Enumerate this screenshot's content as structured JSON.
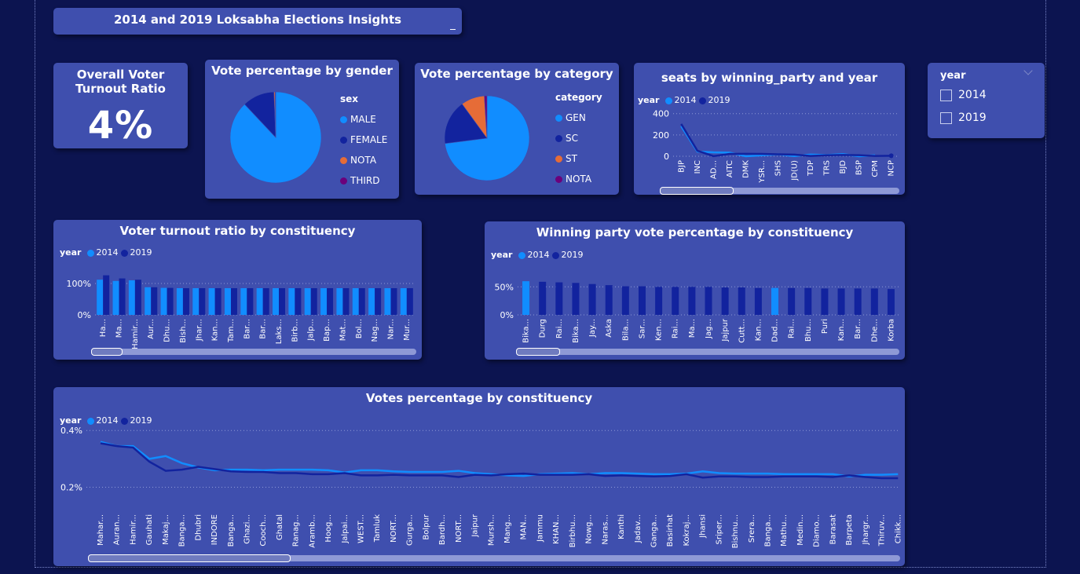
{
  "header": {
    "title": "2014 and 2019 Loksabha Elections Insights"
  },
  "colors": {
    "y2014": "#118dff",
    "y2019": "#12239e",
    "nota": "#e66c37",
    "third": "#6b007b",
    "card_bg": "#3f4fae"
  },
  "kpi": {
    "title": "Overall Voter Turnout Ratio",
    "value": "4%"
  },
  "slicer": {
    "title": "year",
    "options": [
      "2014",
      "2019"
    ]
  },
  "chart_data": [
    {
      "type": "pie",
      "title": "Vote percentage by gender",
      "legend_title": "sex",
      "labels": [
        "MALE",
        "FEMALE",
        "NOTA",
        "THIRD"
      ],
      "values": [
        88.0,
        11.4,
        0.4,
        0.2
      ],
      "colors": [
        "#118dff",
        "#12239e",
        "#e66c37",
        "#6b007b"
      ]
    },
    {
      "type": "pie",
      "title": "Vote percentage by category",
      "legend_title": "category",
      "labels": [
        "GEN",
        "SC",
        "ST",
        "NOTA"
      ],
      "values": [
        73,
        17,
        9,
        1
      ],
      "colors": [
        "#118dff",
        "#12239e",
        "#e66c37",
        "#6b007b"
      ]
    },
    {
      "type": "line",
      "title": "seats by winning_party and year",
      "legend_title": "year",
      "categories": [
        "BJP",
        "INC",
        "AD...",
        "AITC",
        "DMK",
        "YSR...",
        "SHS",
        "JD(U)",
        "TDP",
        "TRS",
        "BJD",
        "BSP",
        "CPM",
        "NCP"
      ],
      "series": [
        {
          "name": "2014",
          "values": [
            282,
            44,
            37,
            34,
            0,
            9,
            18,
            2,
            16,
            11,
            20,
            0,
            9,
            null
          ]
        },
        {
          "name": "2019",
          "values": [
            303,
            52,
            1,
            22,
            23,
            22,
            18,
            16,
            3,
            9,
            12,
            10,
            3,
            5
          ]
        }
      ],
      "yticks": [
        "400",
        "200",
        "0"
      ],
      "ylim": [
        0,
        420
      ]
    },
    {
      "type": "bar",
      "title": "Voter turnout ratio by constituency",
      "legend_title": "year",
      "categories": [
        "Ha...",
        "Ma...",
        "Hamir...",
        "Aur...",
        "Dhu...",
        "Bish...",
        "Jhar...",
        "Kan...",
        "Tam...",
        "Bar...",
        "Bar...",
        "Laks...",
        "Birb...",
        "Jalp...",
        "Bap...",
        "Mat...",
        "Bol...",
        "Nag...",
        "Nar...",
        "Mur..."
      ],
      "series": [
        {
          "name": "2014",
          "values": [
            1.12,
            1.08,
            1.1,
            0.88,
            0.86,
            0.85,
            0.85,
            0.85,
            0.85,
            0.85,
            0.85,
            0.85,
            0.85,
            0.85,
            0.85,
            0.85,
            0.85,
            0.85,
            0.85,
            0.85
          ]
        },
        {
          "name": "2019",
          "values": [
            1.26,
            1.16,
            1.12,
            0.88,
            0.86,
            0.85,
            0.85,
            0.85,
            0.85,
            0.85,
            0.85,
            0.85,
            0.85,
            0.85,
            0.85,
            0.85,
            0.85,
            0.85,
            0.85,
            0.85
          ]
        }
      ],
      "yticks": [
        "100%",
        "0%"
      ],
      "ylim": [
        0,
        1.4
      ]
    },
    {
      "type": "bar",
      "title": "Winning party vote percentage by constituency",
      "legend_title": "year",
      "categories": [
        "Bika...",
        "Durg",
        "Rai...",
        "Bika...",
        "Jay...",
        "Aska",
        "Bila...",
        "Sar...",
        "Ken...",
        "Rai...",
        "Ma...",
        "Jag...",
        "Jajpur",
        "Cutt...",
        "Kan...",
        "Dad...",
        "Rai...",
        "Bhu...",
        "Puri",
        "Kan...",
        "Bar...",
        "Dhe...",
        "Korba"
      ],
      "series": [
        {
          "name": "2014",
          "values": [
            0.6,
            null,
            null,
            null,
            null,
            null,
            null,
            null,
            null,
            null,
            null,
            null,
            null,
            null,
            null,
            0.48,
            null,
            null,
            null,
            null,
            null,
            null,
            null
          ]
        },
        {
          "name": "2019",
          "values": [
            null,
            0.59,
            0.58,
            0.57,
            0.55,
            0.53,
            0.51,
            0.51,
            0.5,
            0.5,
            0.5,
            0.5,
            0.49,
            0.49,
            0.48,
            null,
            0.48,
            0.48,
            0.47,
            0.47,
            0.47,
            0.47,
            0.46
          ]
        }
      ],
      "yticks": [
        "50%",
        "0%"
      ],
      "ylim": [
        0,
        0.7
      ]
    },
    {
      "type": "line",
      "title": "Votes percentage by constituency",
      "legend_title": "year",
      "categories": [
        "Mahar...",
        "Auran...",
        "Hamir...",
        "Gauhati",
        "Makaj...",
        "Banga...",
        "Dhubri",
        "INDORE",
        "Banga...",
        "Ghazi...",
        "Cooch...",
        "Ghatal",
        "Ranag...",
        "Aramb...",
        "Hoog...",
        "Jalpai...",
        "WEST...",
        "Tamluk",
        "NORT...",
        "Gurga...",
        "Bolpur",
        "Bardh...",
        "NORT...",
        "Jaipur",
        "Mursh...",
        "Mang...",
        "MAN...",
        "Jammu",
        "KHAN...",
        "Birbhu...",
        "Nowg...",
        "Naras...",
        "Kanthi",
        "Jadav...",
        "Ganga...",
        "Basirhat",
        "Kokraj...",
        "Jhansi",
        "Sriper...",
        "Bishnu...",
        "Srera...",
        "Banga...",
        "Mathu...",
        "Medin...",
        "Diamo...",
        "Barasat",
        "Barpeta",
        "Jhargr...",
        "Thiruv...",
        "Chikk..."
      ],
      "series": [
        {
          "name": "2014",
          "values": [
            0.36,
            0.345,
            0.345,
            0.3,
            0.31,
            0.285,
            0.27,
            0.26,
            0.262,
            0.262,
            0.26,
            0.262,
            0.262,
            0.262,
            0.26,
            0.252,
            0.26,
            0.26,
            0.256,
            0.254,
            0.254,
            0.254,
            0.258,
            0.25,
            0.246,
            0.242,
            0.24,
            0.246,
            0.248,
            0.25,
            0.246,
            0.25,
            0.25,
            0.248,
            0.246,
            0.246,
            0.248,
            0.256,
            0.25,
            0.248,
            0.248,
            0.248,
            0.246,
            0.246,
            0.246,
            0.246,
            0.238,
            0.244,
            0.244,
            0.246
          ]
        },
        {
          "name": "2019",
          "values": [
            0.355,
            0.345,
            0.34,
            0.29,
            0.258,
            0.262,
            0.272,
            0.264,
            0.256,
            0.254,
            0.254,
            0.25,
            0.25,
            0.246,
            0.246,
            0.25,
            0.242,
            0.242,
            0.244,
            0.242,
            0.242,
            0.242,
            0.236,
            0.244,
            0.242,
            0.246,
            0.248,
            0.244,
            0.244,
            0.244,
            0.246,
            0.24,
            0.242,
            0.24,
            0.238,
            0.24,
            0.246,
            0.234,
            0.238,
            0.238,
            0.236,
            0.236,
            0.238,
            0.238,
            0.238,
            0.236,
            0.242,
            0.236,
            0.232,
            0.232
          ]
        }
      ],
      "yticks": [
        "0.4%",
        "0.2%"
      ],
      "ylim": [
        0.16,
        0.42
      ]
    }
  ]
}
